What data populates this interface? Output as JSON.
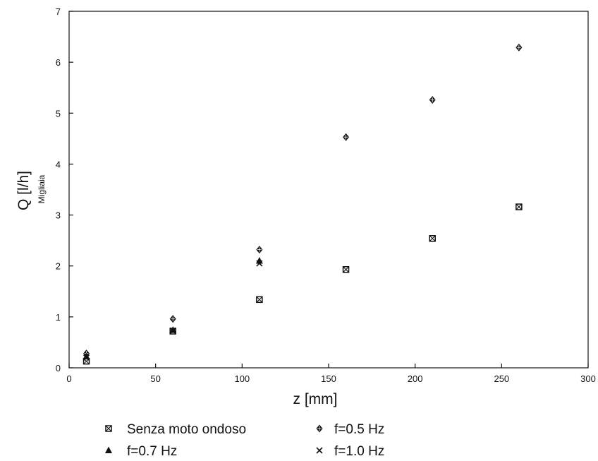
{
  "chart_data": {
    "type": "scatter",
    "title": "",
    "xlabel": "z [mm]",
    "ylabel": "Q [l/h]",
    "ylabel_multiplier": "Migliaia",
    "xlim": [
      0,
      300
    ],
    "ylim": [
      0,
      7
    ],
    "x_ticks": [
      0,
      50,
      100,
      150,
      200,
      250,
      300
    ],
    "y_ticks": [
      0,
      1,
      2,
      3,
      4,
      5,
      6,
      7
    ],
    "grid": false,
    "legend_position": "bottom",
    "series": [
      {
        "name": "Senza moto ondoso",
        "marker": "crossed-square",
        "points": [
          [
            10,
            0.13
          ],
          [
            60,
            0.72
          ],
          [
            110,
            1.34
          ],
          [
            160,
            1.93
          ],
          [
            210,
            2.54
          ],
          [
            260,
            3.16
          ]
        ]
      },
      {
        "name": "f=0.5 Hz",
        "marker": "diamond",
        "points": [
          [
            10,
            0.28
          ],
          [
            60,
            0.96
          ],
          [
            110,
            2.32
          ],
          [
            160,
            4.53
          ],
          [
            210,
            5.26
          ],
          [
            260,
            6.29
          ]
        ]
      },
      {
        "name": "f=0.7 Hz",
        "marker": "triangle",
        "points": [
          [
            10,
            0.22
          ],
          [
            60,
            0.74
          ],
          [
            110,
            2.1
          ]
        ]
      },
      {
        "name": "f=1.0 Hz",
        "marker": "x",
        "points": [
          [
            10,
            0.2
          ],
          [
            60,
            0.73
          ],
          [
            110,
            2.05
          ]
        ]
      }
    ]
  },
  "colors": {
    "ink": "#111111",
    "background": "#ffffff"
  }
}
